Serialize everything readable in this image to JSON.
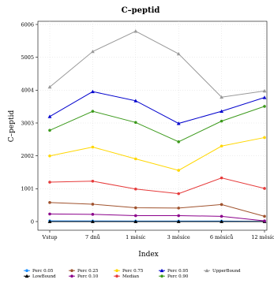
{
  "chart_data": {
    "type": "line",
    "title": "C–peptid",
    "xlabel": "Index",
    "ylabel": "C–peptid",
    "categories": [
      "Vstup",
      "7 dnů",
      "1 měsíc",
      "3 měsíce",
      "6 měsíců",
      "12 měsíců"
    ],
    "yticks": [
      0,
      1001,
      2002,
      3003,
      4004,
      5005,
      6006
    ],
    "ylim": [
      -100,
      6006
    ],
    "grid": true,
    "legend_position": "bottom",
    "series": [
      {
        "name": "Perc 0.05",
        "color": "#1E90FF",
        "marker": "circle",
        "values": [
          20,
          18,
          15,
          15,
          15,
          5
        ]
      },
      {
        "name": "LowBound",
        "color": "#000000",
        "marker": "triangle",
        "values": [
          0,
          0,
          0,
          0,
          0,
          0
        ]
      },
      {
        "name": "Perc 0.25",
        "color": "#A0522D",
        "marker": "circle",
        "values": [
          580,
          530,
          420,
          410,
          520,
          160
        ]
      },
      {
        "name": "Perc 0.10",
        "color": "#8B008B",
        "marker": "circle",
        "values": [
          230,
          220,
          180,
          180,
          160,
          20
        ]
      },
      {
        "name": "Perc 0.75",
        "color": "#FFD700",
        "marker": "circle",
        "values": [
          2000,
          2270,
          1910,
          1560,
          2300,
          2560
        ]
      },
      {
        "name": "Median",
        "color": "#E63B3B",
        "marker": "circle",
        "values": [
          1200,
          1230,
          990,
          850,
          1330,
          1010
        ]
      },
      {
        "name": "Perc 0.95",
        "color": "#0000CD",
        "marker": "triangle",
        "values": [
          3200,
          3960,
          3680,
          2990,
          3360,
          3780
        ]
      },
      {
        "name": "Perc 0.90",
        "color": "#3C9A1C",
        "marker": "circle",
        "values": [
          2780,
          3360,
          3020,
          2430,
          3060,
          3510
        ]
      },
      {
        "name": "UpperBound",
        "color": "#999999",
        "marker": "triangle",
        "values": [
          4100,
          5180,
          5800,
          5110,
          3790,
          3980
        ]
      }
    ]
  }
}
